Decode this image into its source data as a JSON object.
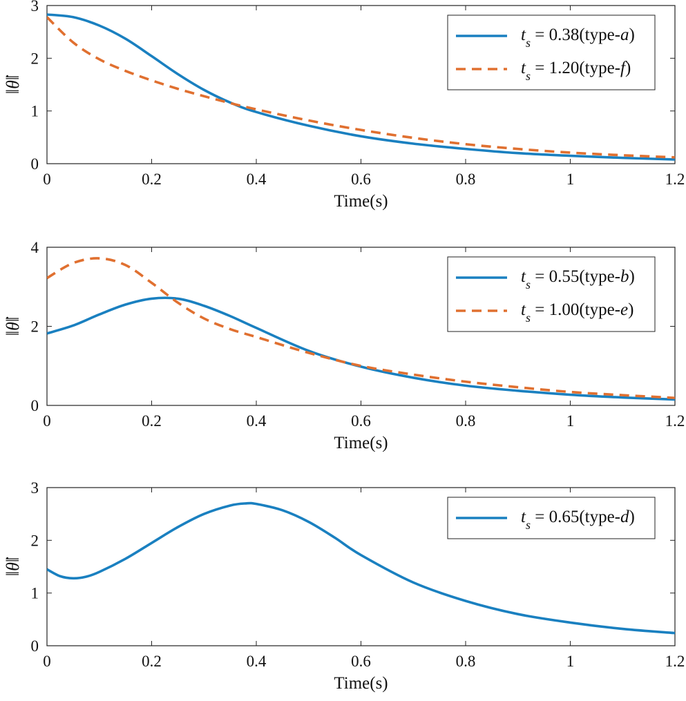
{
  "chart_data": [
    {
      "type": "line",
      "xlabel": "Time(s)",
      "ylabel": "‖θ̇‖",
      "xlim": [
        0,
        1.2
      ],
      "ylim": [
        0,
        3
      ],
      "xticks": [
        0,
        0.2,
        0.4,
        0.6,
        0.8,
        1,
        1.2
      ],
      "xtick_labels": [
        "0",
        "0.2",
        "0.4",
        "0.6",
        "0.8",
        "1",
        "1.2"
      ],
      "yticks": [
        0,
        1,
        2,
        3
      ],
      "ytick_labels": [
        "0",
        "1",
        "2",
        "3"
      ],
      "legend_position": "top-right",
      "series": [
        {
          "name": "t_s = 0.38(type-a)",
          "legend": {
            "prefix": "t",
            "sub": "s",
            "value": " = 0.38(type-",
            "type": "a",
            "suffix": ")"
          },
          "color": "#1a80c0",
          "dash": "solid",
          "x": [
            0,
            0.05,
            0.1,
            0.15,
            0.2,
            0.25,
            0.3,
            0.35,
            0.4,
            0.5,
            0.6,
            0.7,
            0.8,
            0.9,
            1.0,
            1.1,
            1.2
          ],
          "y": [
            2.83,
            2.78,
            2.62,
            2.37,
            2.04,
            1.7,
            1.4,
            1.16,
            0.98,
            0.72,
            0.52,
            0.38,
            0.28,
            0.2,
            0.15,
            0.11,
            0.08
          ]
        },
        {
          "name": "t_s = 1.20(type-f)",
          "legend": {
            "prefix": "t",
            "sub": "s",
            "value": " = 1.20(type-",
            "type": "f",
            "suffix": ")"
          },
          "color": "#e07030",
          "dash": "dashed",
          "x": [
            0,
            0.05,
            0.1,
            0.15,
            0.2,
            0.25,
            0.3,
            0.35,
            0.4,
            0.5,
            0.6,
            0.7,
            0.8,
            0.9,
            1.0,
            1.1,
            1.2
          ],
          "y": [
            2.78,
            2.3,
            1.98,
            1.76,
            1.58,
            1.42,
            1.28,
            1.15,
            1.03,
            0.82,
            0.64,
            0.49,
            0.37,
            0.28,
            0.21,
            0.16,
            0.12
          ]
        }
      ]
    },
    {
      "type": "line",
      "xlabel": "Time(s)",
      "ylabel": "‖θ̇‖",
      "xlim": [
        0,
        1.2
      ],
      "ylim": [
        0,
        4
      ],
      "xticks": [
        0,
        0.2,
        0.4,
        0.6,
        0.8,
        1,
        1.2
      ],
      "xtick_labels": [
        "0",
        "0.2",
        "0.4",
        "0.6",
        "0.8",
        "1",
        "1.2"
      ],
      "yticks": [
        0,
        2,
        4
      ],
      "ytick_labels": [
        "0",
        "2",
        "4"
      ],
      "legend_position": "top-right",
      "series": [
        {
          "name": "t_s = 0.55(type-b)",
          "legend": {
            "prefix": "t",
            "sub": "s",
            "value": " = 0.55(type-",
            "type": "b",
            "suffix": ")"
          },
          "color": "#1a80c0",
          "dash": "solid",
          "x": [
            0,
            0.05,
            0.1,
            0.15,
            0.2,
            0.25,
            0.3,
            0.35,
            0.4,
            0.5,
            0.6,
            0.7,
            0.8,
            0.9,
            1.0,
            1.1,
            1.2
          ],
          "y": [
            1.82,
            2.02,
            2.3,
            2.55,
            2.7,
            2.7,
            2.52,
            2.26,
            1.96,
            1.38,
            0.98,
            0.7,
            0.5,
            0.37,
            0.27,
            0.2,
            0.15
          ]
        },
        {
          "name": "t_s = 1.00(type-e)",
          "legend": {
            "prefix": "t",
            "sub": "s",
            "value": " = 1.00(type-",
            "type": "e",
            "suffix": ")"
          },
          "color": "#e07030",
          "dash": "dashed",
          "x": [
            0,
            0.05,
            0.1,
            0.15,
            0.2,
            0.25,
            0.3,
            0.35,
            0.4,
            0.5,
            0.6,
            0.7,
            0.8,
            0.9,
            1.0,
            1.1,
            1.2
          ],
          "y": [
            3.22,
            3.6,
            3.72,
            3.55,
            3.1,
            2.6,
            2.2,
            1.93,
            1.73,
            1.33,
            1.0,
            0.78,
            0.6,
            0.46,
            0.34,
            0.26,
            0.19
          ]
        }
      ]
    },
    {
      "type": "line",
      "xlabel": "Time(s)",
      "ylabel": "‖θ̇‖",
      "xlim": [
        0,
        1.2
      ],
      "ylim": [
        0,
        3
      ],
      "xticks": [
        0,
        0.2,
        0.4,
        0.6,
        0.8,
        1,
        1.2
      ],
      "xtick_labels": [
        "0",
        "0.2",
        "0.4",
        "0.6",
        "0.8",
        "1",
        "1.2"
      ],
      "yticks": [
        0,
        1,
        2,
        3
      ],
      "ytick_labels": [
        "0",
        "1",
        "2",
        "3"
      ],
      "legend_position": "top-right",
      "series": [
        {
          "name": "t_s = 0.65(type-d)",
          "legend": {
            "prefix": "t",
            "sub": "s",
            "value": " = 0.65(type-",
            "type": "d",
            "suffix": ")"
          },
          "color": "#1a80c0",
          "dash": "solid",
          "x": [
            0,
            0.025,
            0.05,
            0.075,
            0.1,
            0.15,
            0.2,
            0.25,
            0.3,
            0.35,
            0.38,
            0.4,
            0.45,
            0.5,
            0.55,
            0.6,
            0.7,
            0.8,
            0.9,
            1.0,
            1.1,
            1.2
          ],
          "y": [
            1.45,
            1.32,
            1.28,
            1.31,
            1.4,
            1.65,
            1.95,
            2.25,
            2.5,
            2.66,
            2.7,
            2.69,
            2.57,
            2.35,
            2.05,
            1.72,
            1.2,
            0.85,
            0.6,
            0.44,
            0.32,
            0.24
          ]
        }
      ]
    }
  ]
}
